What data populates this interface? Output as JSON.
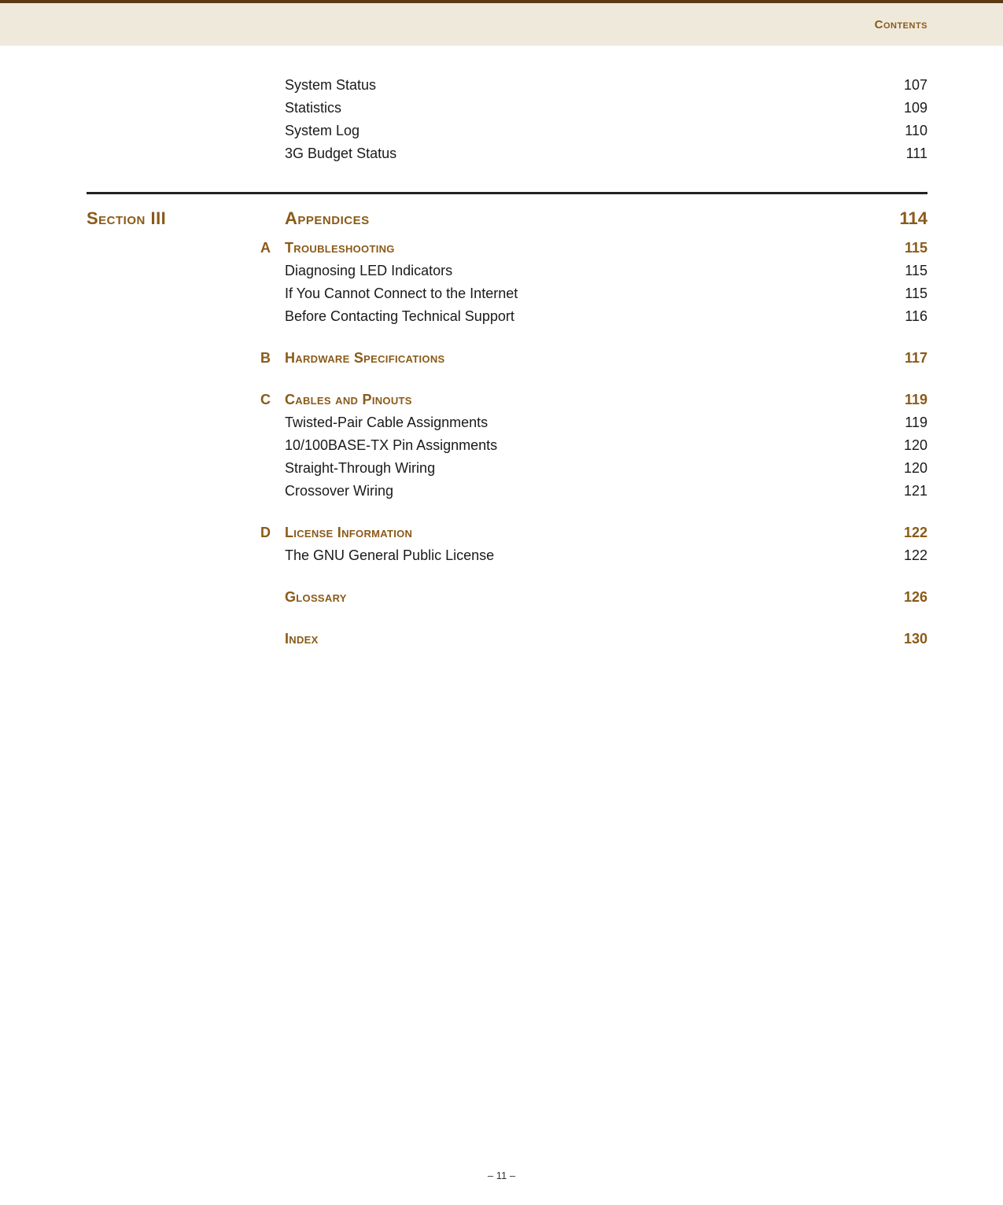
{
  "colors": {
    "accent": "#8a5a18",
    "header_band_bg": "#efe9dc",
    "top_rule": "#5a3a10",
    "section_rule": "#222222",
    "body_text": "#1a1a1a",
    "page_bg": "#ffffff"
  },
  "header": {
    "label": "Contents"
  },
  "pre_section_items": [
    {
      "title": "System Status",
      "page": "107"
    },
    {
      "title": "Statistics",
      "page": "109"
    },
    {
      "title": "System Log",
      "page": "110"
    },
    {
      "title": "3G Budget Status",
      "page": "111"
    }
  ],
  "section": {
    "label": "Section III",
    "title": "Appendices",
    "page": "114"
  },
  "appendices": [
    {
      "letter": "A",
      "title": "Troubleshooting",
      "page": "115",
      "items": [
        {
          "title": "Diagnosing LED Indicators",
          "page": "115"
        },
        {
          "title": "If You Cannot Connect to the Internet",
          "page": "115"
        },
        {
          "title": "Before Contacting Technical Support",
          "page": "116"
        }
      ]
    },
    {
      "letter": "B",
      "title": "Hardware Specifications",
      "page": "117",
      "items": []
    },
    {
      "letter": "C",
      "title": "Cables and Pinouts",
      "page": "119",
      "items": [
        {
          "title": "Twisted-Pair Cable Assignments",
          "page": "119"
        },
        {
          "title": "10/100BASE-TX Pin Assignments",
          "page": "120"
        },
        {
          "title": "Straight-Through Wiring",
          "page": "120"
        },
        {
          "title": "Crossover Wiring",
          "page": "121"
        }
      ]
    },
    {
      "letter": "D",
      "title": "License Information",
      "page": "122",
      "items": [
        {
          "title": "The GNU General Public License",
          "page": "122"
        }
      ]
    }
  ],
  "tail": [
    {
      "title": "Glossary",
      "page": "126"
    },
    {
      "title": "Index",
      "page": "130"
    }
  ],
  "footer": {
    "text": "–  11  –"
  }
}
